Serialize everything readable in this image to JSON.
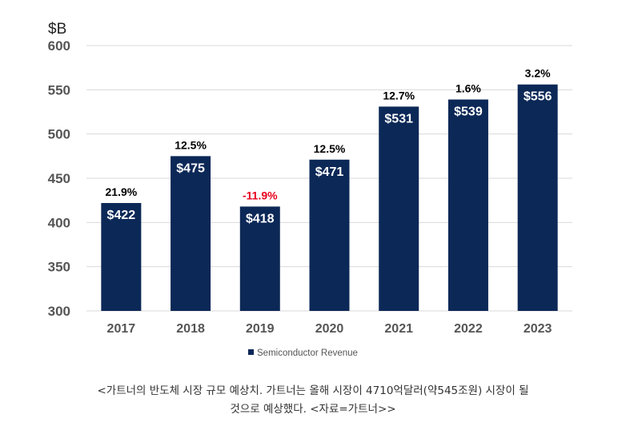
{
  "chart_data": {
    "type": "bar",
    "ylabel": "$B",
    "ylim": [
      300,
      600
    ],
    "yticks": [
      300,
      350,
      400,
      450,
      500,
      550,
      600
    ],
    "grid": true,
    "categories": [
      "2017",
      "2018",
      "2019",
      "2020",
      "2021",
      "2022",
      "2023"
    ],
    "series": [
      {
        "name": "Semiconductor Revenue",
        "values": [
          422,
          475,
          418,
          471,
          531,
          539,
          556
        ],
        "color": "#0c2857"
      }
    ],
    "value_labels": [
      "$422",
      "$475",
      "$418",
      "$471",
      "$531",
      "$539",
      "$556"
    ],
    "growth_labels": [
      "21.9%",
      "12.5%",
      "-11.9%",
      "12.5%",
      "12.7%",
      "1.6%",
      "3.2%"
    ],
    "growth_colors": [
      "#000000",
      "#000000",
      "#e8001c",
      "#000000",
      "#000000",
      "#000000",
      "#000000"
    ],
    "legend_position": "bottom"
  },
  "caption": {
    "line1": "<가트너의 반도체 시장 규모 예상치. 가트너는 올해 시장이 4710억달러(약545조원) 시장이 될",
    "line2": "것으로 예상했다. <자료=가트너>>"
  }
}
